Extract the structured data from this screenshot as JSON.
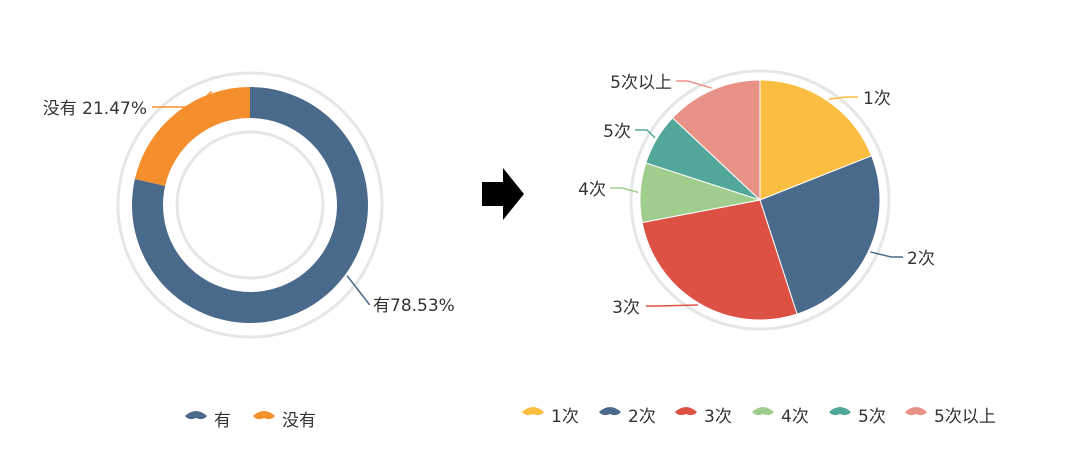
{
  "chart_data": [
    {
      "type": "pie",
      "variant": "donut",
      "slices": [
        {
          "label": "有",
          "value": 78.53,
          "color": "#4a6a8c",
          "data_label": "有78.53%"
        },
        {
          "label": "没有",
          "value": 21.47,
          "color": "#f58f2e",
          "data_label": "没有  21.47%"
        }
      ],
      "legend": {
        "position": "bottom",
        "items": [
          "有",
          "没有"
        ]
      }
    },
    {
      "type": "pie",
      "slices": [
        {
          "label": "1次",
          "value": 19,
          "color": "#fbbe41",
          "data_label": "1次"
        },
        {
          "label": "2次",
          "value": 26,
          "color": "#4a6a8c",
          "data_label": "2次"
        },
        {
          "label": "3次",
          "value": 27,
          "color": "#dd5144",
          "data_label": "3次"
        },
        {
          "label": "4次",
          "value": 8,
          "color": "#9fcd8d",
          "data_label": "4次"
        },
        {
          "label": "5次",
          "value": 7,
          "color": "#52a69a",
          "data_label": "5次"
        },
        {
          "label": "5次以上",
          "value": 13,
          "color": "#e89187",
          "data_label": "5次以上"
        }
      ],
      "legend": {
        "position": "bottom",
        "items": [
          "1次",
          "2次",
          "3次",
          "4次",
          "5次",
          "5次以上"
        ]
      }
    }
  ],
  "arrow_icon": "right-arrow-icon"
}
